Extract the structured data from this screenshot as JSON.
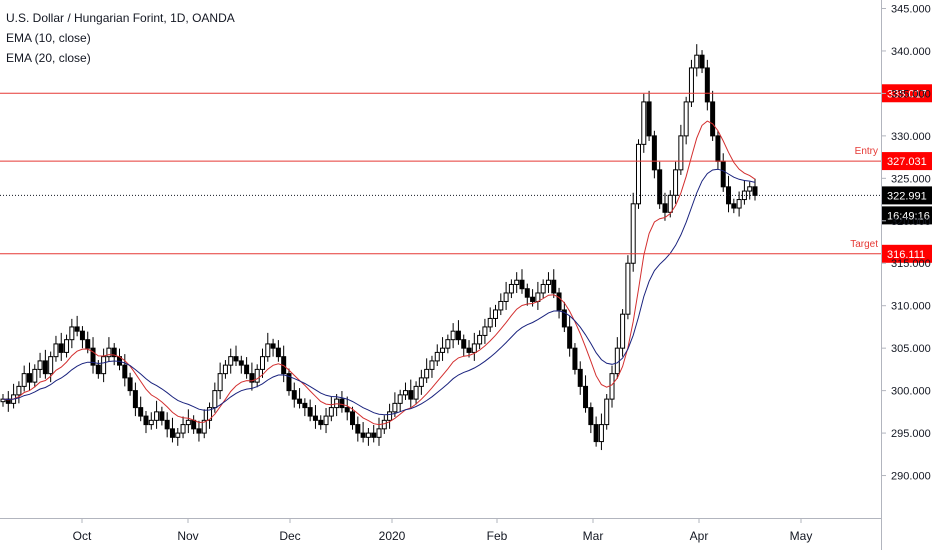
{
  "legend": {
    "title": "U.S. Dollar / Hungarian Forint, 1D, OANDA",
    "ema10": "EMA (10, close)",
    "ema20": "EMA (20, close)"
  },
  "countdown": "16:49:16",
  "colors": {
    "candle": "#000000",
    "ema10": "#d32f2f",
    "ema20": "#1a237e",
    "hline": "#e53935",
    "price_tag": "#000000",
    "level_tag": "#ff0000"
  },
  "chart_data": {
    "type": "candlestick",
    "title": "U.S. Dollar / Hungarian Forint, 1D, OANDA",
    "ylim": [
      285,
      346
    ],
    "y_ticks": [
      290.0,
      295.0,
      300.0,
      305.0,
      310.0,
      315.0,
      320.0,
      325.0,
      330.0,
      335.0,
      340.0,
      345.0
    ],
    "x_ticks": [
      "Oct",
      "Nov",
      "Dec",
      "2020",
      "Feb",
      "Mar",
      "Apr",
      "May"
    ],
    "last_price": 322.991,
    "horizontal_levels": [
      {
        "value": 335.017,
        "label": "335.017",
        "annotation": ""
      },
      {
        "value": 327.031,
        "label": "327.031",
        "annotation": "Entry"
      },
      {
        "value": 316.111,
        "label": "316.111",
        "annotation": "Target"
      }
    ],
    "close_series_approx": [
      [
        299.0,
        298.5,
        299.5,
        300.5,
        302.0,
        301.0,
        302.5,
        303.5,
        302.0,
        304.0,
        305.5,
        304.5,
        306.0,
        307.5,
        307.0,
        306.0,
        305.0,
        303.0,
        302.0,
        304.0,
        305.0,
        304.0,
        303.0,
        301.5,
        300.0,
        298.0,
        297.0,
        296.0,
        296.5,
        297.5,
        296.5,
        295.5,
        294.5,
        295.0,
        296.0,
        296.5,
        295.5,
        295.0,
        296.5,
        298.0,
        300.0,
        302.0,
        303.0,
        304.0,
        303.5,
        303.0,
        302.0,
        301.0,
        302.5,
        304.0,
        305.5,
        305.0,
        304.0,
        302.0,
        300.0,
        299.0,
        298.5,
        298.0,
        297.0,
        296.5,
        296.0,
        297.0,
        298.0,
        299.0,
        298.0,
        297.5,
        296.0,
        295.0,
        294.5,
        295.0,
        294.5,
        295.5,
        296.5,
        297.5,
        298.5,
        299.5,
        300.0,
        299.0,
        300.5,
        301.5,
        302.5,
        303.5,
        304.5,
        305.0,
        306.0,
        307.0,
        306.0,
        305.0,
        304.5,
        305.5,
        306.5,
        307.5,
        308.5,
        309.5,
        310.5,
        311.5,
        312.5,
        313.0,
        312.0,
        311.0,
        310.5,
        311.5,
        312.5,
        313.0,
        311.5,
        309.5,
        307.5,
        305.0,
        302.5,
        300.5,
        298.0,
        296.0,
        294.0,
        296.0,
        299.0,
        302.0,
        305.0,
        309.0,
        315.0,
        322.0,
        329.0,
        334.0,
        330.0,
        326.0,
        322.0,
        321.0,
        323.0,
        326.0,
        330.0,
        334.0,
        338.0,
        339.5,
        338.0,
        334.0,
        330.0,
        327.0,
        324.0,
        322.0,
        321.5,
        322.5,
        323.5,
        324.0,
        322.991
      ]
    ]
  }
}
